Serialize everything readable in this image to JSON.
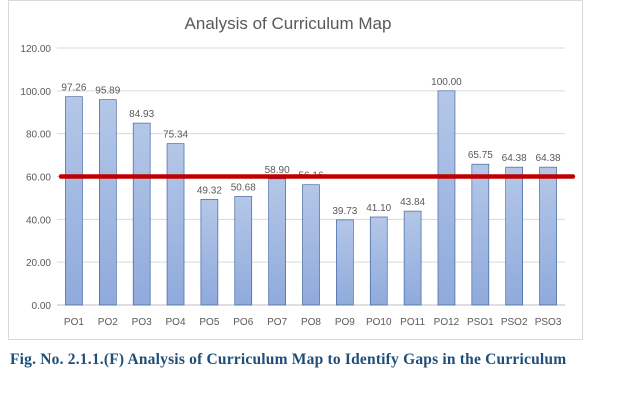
{
  "caption": "Fig. No. 2.1.1.(F) Analysis of Curriculum Map to Identify Gaps in the Curriculum",
  "chart_data": {
    "type": "bar",
    "title": "Analysis of Curriculum Map",
    "categories": [
      "PO1",
      "PO2",
      "PO3",
      "PO4",
      "PO5",
      "PO6",
      "PO7",
      "PO8",
      "PO9",
      "PO10",
      "PO11",
      "PO12",
      "PSO1",
      "PSO2",
      "PSO3"
    ],
    "values": [
      97.26,
      95.89,
      84.93,
      75.34,
      49.32,
      50.68,
      58.9,
      56.16,
      39.73,
      41.1,
      43.84,
      100.0,
      65.75,
      64.38,
      64.38
    ],
    "value_labels": [
      "97.26",
      "95.89",
      "84.93",
      "75.34",
      "49.32",
      "50.68",
      "58.90",
      "56.16",
      "39.73",
      "41.10",
      "43.84",
      "100.00",
      "65.75",
      "64.38",
      "64.38"
    ],
    "y_ticks": [
      "0.00",
      "20.00",
      "40.00",
      "60.00",
      "80.00",
      "100.00",
      "120.00"
    ],
    "ylim": [
      0,
      120
    ],
    "threshold": 60,
    "grid": true,
    "colors": {
      "bar_top": "#b4c7e7",
      "bar_bottom": "#8faadc",
      "bar_edge": "#2f5597",
      "threshold_line": "#c00000",
      "grid": "#d9d9d9",
      "text": "#595959"
    }
  }
}
